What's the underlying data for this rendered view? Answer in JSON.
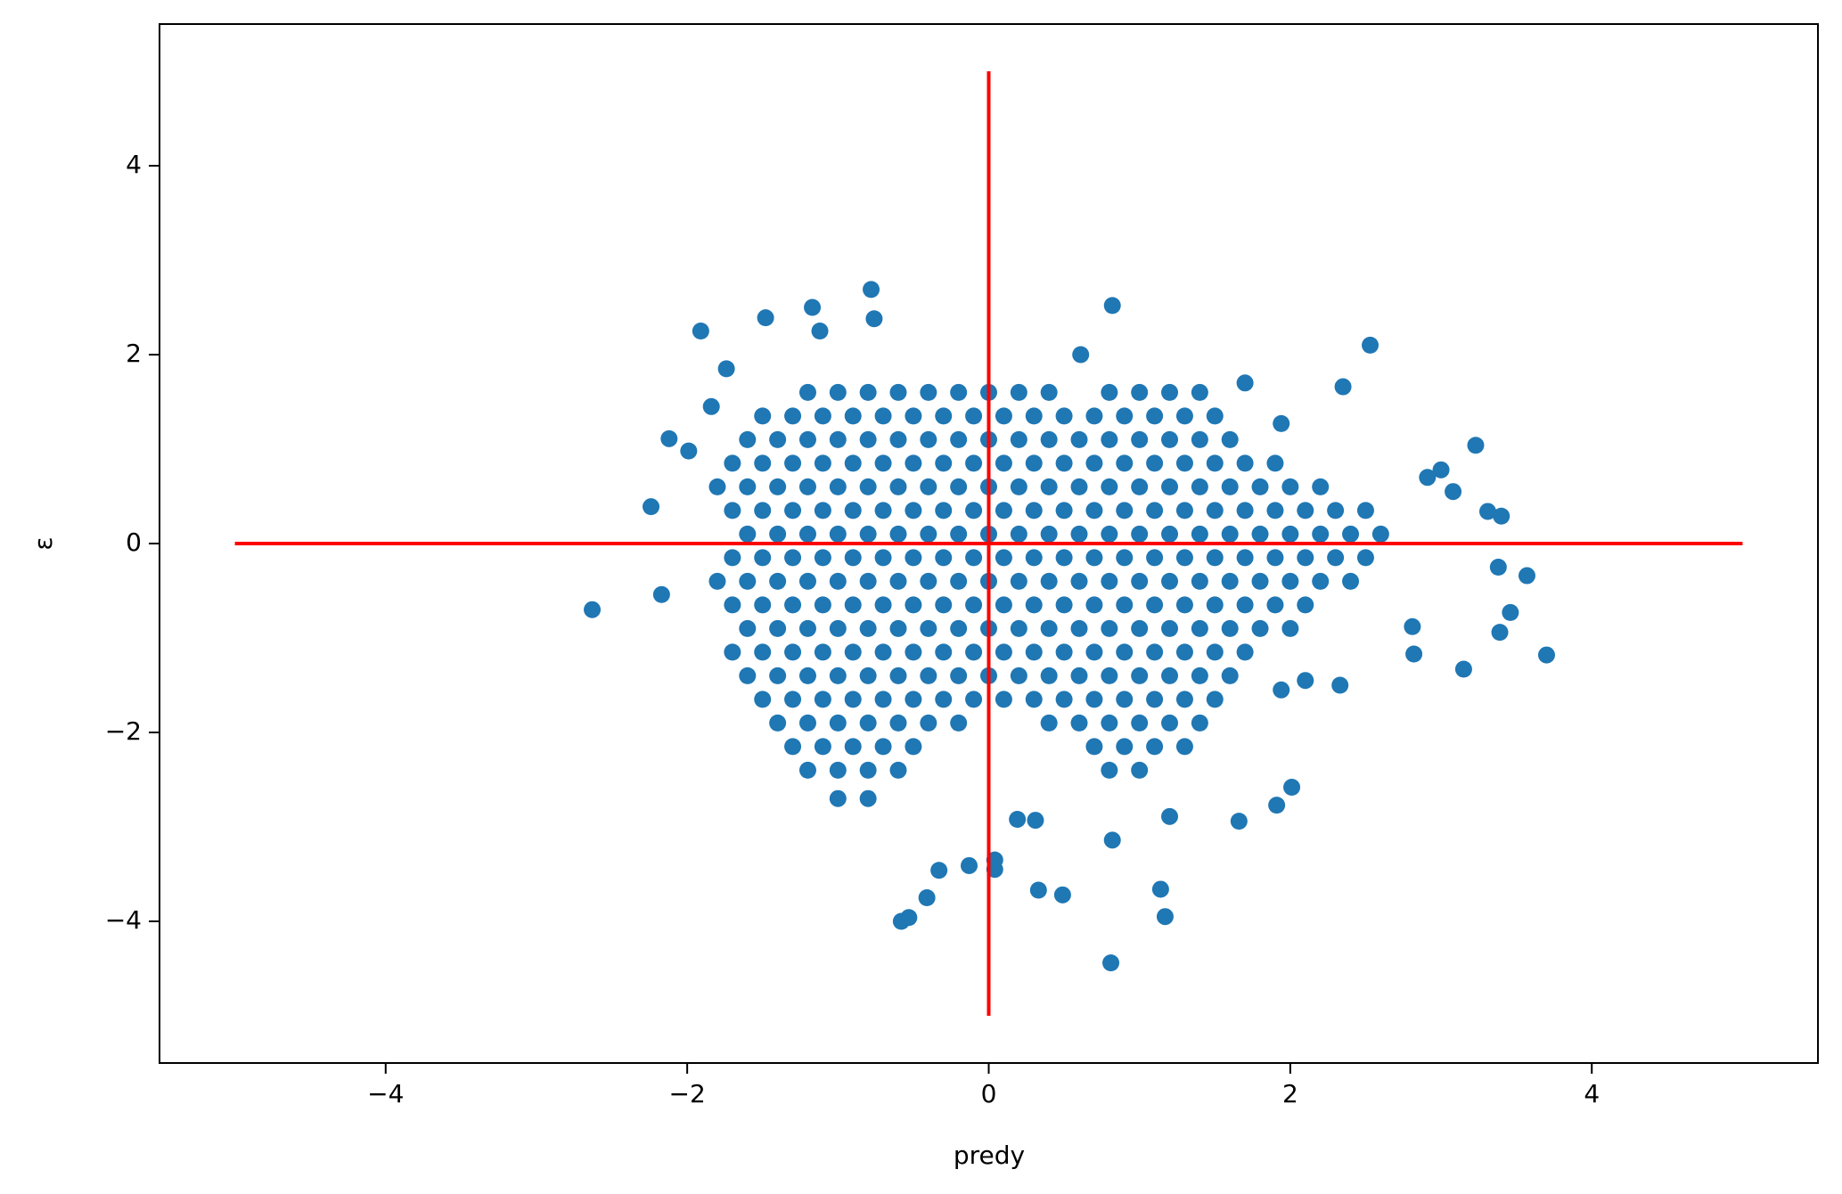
{
  "chart_data": {
    "type": "scatter",
    "x_label": "predy",
    "y_label": "ε",
    "xlim": [
      -5.5,
      5.5
    ],
    "ylim": [
      -5.5,
      5.5
    ],
    "xticks": [
      {
        "value": -4,
        "label": "−4"
      },
      {
        "value": -2,
        "label": "−2"
      },
      0,
      2,
      4
    ],
    "yticks": [
      {
        "value": -4,
        "label": "−4"
      },
      {
        "value": -2,
        "label": "−2"
      },
      0,
      2,
      4
    ],
    "color": "#1f77b4",
    "x": [
      -2.63,
      -2.24,
      -2.12,
      -1.91,
      -1.99,
      -2.17,
      0.82,
      2.53,
      2.35,
      3.23,
      3.7,
      3.57,
      3.46,
      3.39,
      3.4,
      3.31,
      3.15,
      3.38,
      0.81,
      1.17,
      1.14,
      0.49,
      0.33,
      0.04,
      0.04,
      -0.58,
      -0.53,
      -0.41,
      -0.33,
      -0.13,
      -0.78,
      -1.17,
      -1.48,
      -1.12,
      -0.76,
      0.61,
      1.94,
      1.7,
      3,
      3.08,
      2.91,
      2.81,
      2.82,
      2.01,
      1.91,
      1.66,
      0.82,
      0.31,
      0.19,
      1.2,
      2.1,
      1.94,
      2.33,
      -1.74,
      -1.84,
      -1.2,
      -1,
      -0.8,
      -0.6,
      -0.4,
      -0.2,
      0,
      0.2,
      0.4,
      0.8,
      1,
      1.2,
      1.4,
      -1.5,
      -1.3,
      -1.1,
      -0.9,
      -0.7,
      -0.5,
      -0.3,
      -0.1,
      0.1,
      0.3,
      0.5,
      0.7,
      0.9,
      1.1,
      1.3,
      1.5,
      -1.6,
      -1.4,
      -1.2,
      -1,
      -0.8,
      -0.6,
      -0.4,
      -0.2,
      0,
      0.2,
      0.4,
      0.6,
      0.8,
      1,
      1.2,
      1.4,
      1.6,
      -1.7,
      -1.5,
      -1.3,
      -1.1,
      -0.9,
      -0.7,
      -0.5,
      -0.3,
      -0.1,
      0.1,
      0.3,
      0.5,
      0.7,
      0.9,
      1.1,
      1.3,
      1.5,
      1.7,
      1.9,
      -1.8,
      -1.6,
      -1.4,
      -1.2,
      -1,
      -0.8,
      -0.6,
      -0.4,
      -0.2,
      0,
      0.2,
      0.4,
      0.6,
      0.8,
      1,
      1.2,
      1.4,
      1.6,
      1.8,
      2,
      2.2,
      -1.7,
      -1.5,
      -1.3,
      -1.1,
      -0.9,
      -0.7,
      -0.5,
      -0.3,
      -0.1,
      0.1,
      0.3,
      0.5,
      0.7,
      0.9,
      1.1,
      1.3,
      1.5,
      1.7,
      1.9,
      2.1,
      2.3,
      2.5,
      -1.6,
      -1.4,
      -1.2,
      -1,
      -0.8,
      -0.6,
      -0.4,
      -0.2,
      0,
      0.2,
      0.4,
      0.6,
      0.8,
      1,
      1.2,
      1.4,
      1.6,
      1.8,
      2,
      2.2,
      2.4,
      2.6,
      -1.7,
      -1.5,
      -1.3,
      -1.1,
      -0.9,
      -0.7,
      -0.5,
      -0.3,
      -0.1,
      0.1,
      0.3,
      0.5,
      0.7,
      0.9,
      1.1,
      1.3,
      1.5,
      1.7,
      1.9,
      2.1,
      2.3,
      2.5,
      -1.8,
      -1.6,
      -1.4,
      -1.2,
      -1,
      -0.8,
      -0.6,
      -0.4,
      -0.2,
      0,
      0.2,
      0.4,
      0.6,
      0.8,
      1,
      1.2,
      1.4,
      1.6,
      1.8,
      2,
      2.2,
      2.4,
      -1.7,
      -1.5,
      -1.3,
      -1.1,
      -0.9,
      -0.7,
      -0.5,
      -0.3,
      -0.1,
      0.1,
      0.3,
      0.5,
      0.7,
      0.9,
      1.1,
      1.3,
      1.5,
      1.7,
      1.9,
      2.1,
      -1.6,
      -1.4,
      -1.2,
      -1,
      -0.8,
      -0.6,
      -0.4,
      -0.2,
      0,
      0.2,
      0.4,
      0.6,
      0.8,
      1,
      1.2,
      1.4,
      1.6,
      1.8,
      2,
      -1.7,
      -1.5,
      -1.3,
      -1.1,
      -0.9,
      -0.7,
      -0.5,
      -0.3,
      -0.1,
      0.1,
      0.3,
      0.5,
      0.7,
      0.9,
      1.1,
      1.3,
      1.5,
      1.7,
      -1.6,
      -1.4,
      -1.2,
      -1,
      -0.8,
      -0.6,
      -0.4,
      -0.2,
      0,
      0.2,
      0.4,
      0.6,
      0.8,
      1,
      1.2,
      1.4,
      1.6,
      -1.5,
      -1.3,
      -1.1,
      -0.9,
      -0.7,
      -0.5,
      -0.3,
      -0.1,
      0.1,
      0.3,
      0.5,
      0.7,
      0.9,
      1.1,
      1.3,
      1.5,
      -1.4,
      -1.2,
      -1,
      -0.8,
      -0.6,
      -0.4,
      -0.2,
      0.4,
      0.6,
      0.8,
      1,
      1.2,
      1.4,
      -1.3,
      -1.1,
      -0.9,
      -0.7,
      -0.5,
      0.7,
      0.9,
      1.1,
      1.3,
      -1.2,
      -1,
      -0.8,
      -0.6,
      0.8,
      1,
      -1,
      -0.8
    ],
    "y": [
      -0.7,
      0.39,
      1.11,
      2.25,
      0.98,
      -0.54,
      2.52,
      2.1,
      1.66,
      1.04,
      -1.18,
      -0.34,
      -0.73,
      -0.94,
      0.29,
      0.34,
      -1.33,
      -0.25,
      -4.44,
      -3.95,
      -3.66,
      -3.72,
      -3.67,
      -3.45,
      -3.35,
      -4,
      -3.96,
      -3.75,
      -3.46,
      -3.41,
      2.69,
      2.5,
      2.39,
      2.25,
      2.38,
      2,
      1.27,
      1.7,
      0.78,
      0.55,
      0.7,
      -0.88,
      -1.17,
      -2.58,
      -2.77,
      -2.94,
      -3.14,
      -2.93,
      -2.92,
      -2.89,
      -1.45,
      -1.55,
      -1.5,
      1.85,
      1.45,
      1.6,
      1.6,
      1.6,
      1.6,
      1.6,
      1.6,
      1.6,
      1.6,
      1.6,
      1.6,
      1.6,
      1.6,
      1.6,
      1.35,
      1.35,
      1.35,
      1.35,
      1.35,
      1.35,
      1.35,
      1.35,
      1.35,
      1.35,
      1.35,
      1.35,
      1.35,
      1.35,
      1.35,
      1.35,
      1.1,
      1.1,
      1.1,
      1.1,
      1.1,
      1.1,
      1.1,
      1.1,
      1.1,
      1.1,
      1.1,
      1.1,
      1.1,
      1.1,
      1.1,
      1.1,
      1.1,
      0.85,
      0.85,
      0.85,
      0.85,
      0.85,
      0.85,
      0.85,
      0.85,
      0.85,
      0.85,
      0.85,
      0.85,
      0.85,
      0.85,
      0.85,
      0.85,
      0.85,
      0.85,
      0.85,
      0.6,
      0.6,
      0.6,
      0.6,
      0.6,
      0.6,
      0.6,
      0.6,
      0.6,
      0.6,
      0.6,
      0.6,
      0.6,
      0.6,
      0.6,
      0.6,
      0.6,
      0.6,
      0.6,
      0.6,
      0.6,
      0.35,
      0.35,
      0.35,
      0.35,
      0.35,
      0.35,
      0.35,
      0.35,
      0.35,
      0.35,
      0.35,
      0.35,
      0.35,
      0.35,
      0.35,
      0.35,
      0.35,
      0.35,
      0.35,
      0.35,
      0.35,
      0.35,
      0.1,
      0.1,
      0.1,
      0.1,
      0.1,
      0.1,
      0.1,
      0.1,
      0.1,
      0.1,
      0.1,
      0.1,
      0.1,
      0.1,
      0.1,
      0.1,
      0.1,
      0.1,
      0.1,
      0.1,
      0.1,
      0.1,
      -0.15,
      -0.15,
      -0.15,
      -0.15,
      -0.15,
      -0.15,
      -0.15,
      -0.15,
      -0.15,
      -0.15,
      -0.15,
      -0.15,
      -0.15,
      -0.15,
      -0.15,
      -0.15,
      -0.15,
      -0.15,
      -0.15,
      -0.15,
      -0.15,
      -0.15,
      -0.4,
      -0.4,
      -0.4,
      -0.4,
      -0.4,
      -0.4,
      -0.4,
      -0.4,
      -0.4,
      -0.4,
      -0.4,
      -0.4,
      -0.4,
      -0.4,
      -0.4,
      -0.4,
      -0.4,
      -0.4,
      -0.4,
      -0.4,
      -0.4,
      -0.4,
      -0.65,
      -0.65,
      -0.65,
      -0.65,
      -0.65,
      -0.65,
      -0.65,
      -0.65,
      -0.65,
      -0.65,
      -0.65,
      -0.65,
      -0.65,
      -0.65,
      -0.65,
      -0.65,
      -0.65,
      -0.65,
      -0.65,
      -0.65,
      -0.9,
      -0.9,
      -0.9,
      -0.9,
      -0.9,
      -0.9,
      -0.9,
      -0.9,
      -0.9,
      -0.9,
      -0.9,
      -0.9,
      -0.9,
      -0.9,
      -0.9,
      -0.9,
      -0.9,
      -0.9,
      -0.9,
      -1.15,
      -1.15,
      -1.15,
      -1.15,
      -1.15,
      -1.15,
      -1.15,
      -1.15,
      -1.15,
      -1.15,
      -1.15,
      -1.15,
      -1.15,
      -1.15,
      -1.15,
      -1.15,
      -1.15,
      -1.15,
      -1.4,
      -1.4,
      -1.4,
      -1.4,
      -1.4,
      -1.4,
      -1.4,
      -1.4,
      -1.4,
      -1.4,
      -1.4,
      -1.4,
      -1.4,
      -1.4,
      -1.4,
      -1.4,
      -1.4,
      -1.65,
      -1.65,
      -1.65,
      -1.65,
      -1.65,
      -1.65,
      -1.65,
      -1.65,
      -1.65,
      -1.65,
      -1.65,
      -1.65,
      -1.65,
      -1.65,
      -1.65,
      -1.65,
      -1.9,
      -1.9,
      -1.9,
      -1.9,
      -1.9,
      -1.9,
      -1.9,
      -1.9,
      -1.9,
      -1.9,
      -1.9,
      -1.9,
      -1.9,
      -2.15,
      -2.15,
      -2.15,
      -2.15,
      -2.15,
      -2.15,
      -2.15,
      -2.15,
      -2.15,
      -2.4,
      -2.4,
      -2.4,
      -2.4,
      -2.4,
      -2.4,
      -2.7,
      -2.7
    ],
    "lines": [
      {
        "x": [
          -5,
          5
        ],
        "y": [
          0,
          0
        ],
        "color": "#ff0000"
      },
      {
        "x": [
          0,
          0
        ],
        "y": [
          -5,
          5
        ],
        "color": "#ff0000"
      }
    ]
  }
}
